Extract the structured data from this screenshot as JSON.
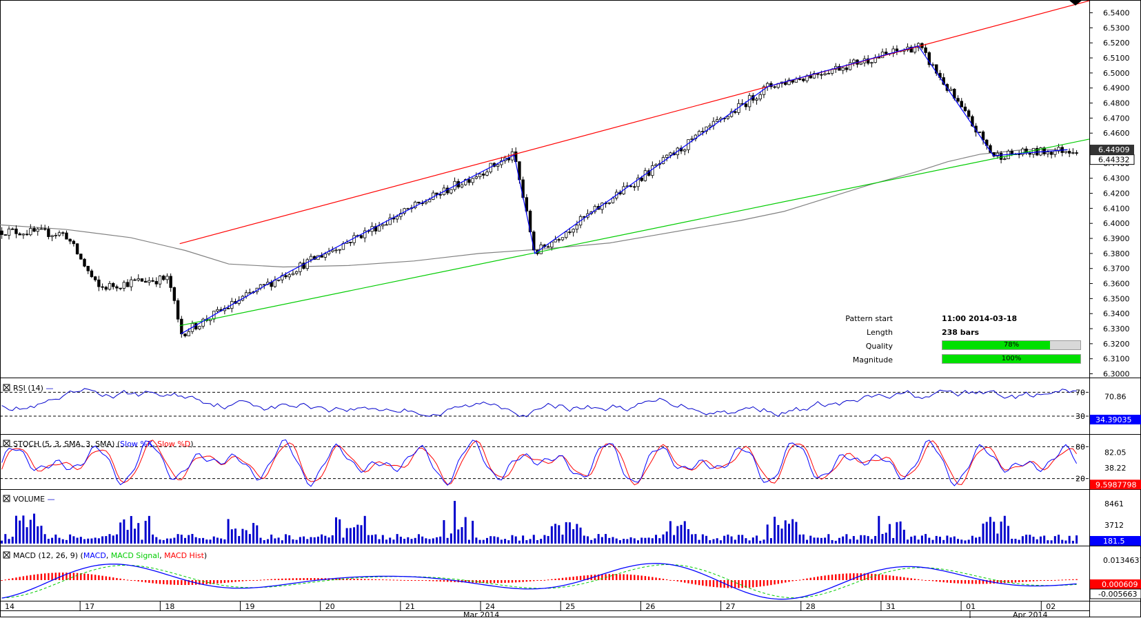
{
  "chart_data": {
    "type": "candlestick",
    "price_axis": {
      "ticks": [
        "6.5400",
        "6.5300",
        "6.5200",
        "6.5100",
        "6.5000",
        "6.4900",
        "6.4800",
        "6.4700",
        "6.4600",
        "6.4500",
        "6.4400",
        "6.4300",
        "6.4200",
        "6.4100",
        "6.4000",
        "6.3900",
        "6.3800",
        "6.3700",
        "6.3600",
        "6.3500",
        "6.3400",
        "6.3300",
        "6.3200",
        "6.3100",
        "6.3000"
      ],
      "ylim": [
        6.2975,
        6.5485
      ],
      "price_tag_1": "6.44909",
      "price_tag_2": "6.44332"
    },
    "x_axis": {
      "day_labels": [
        "14",
        "17",
        "18",
        "19",
        "20",
        "21",
        "24",
        "25",
        "26",
        "27",
        "28",
        "31",
        "01",
        "02"
      ],
      "month_labels": [
        "Mar 2014",
        "Apr 2014"
      ]
    },
    "overlays": {
      "resistance": {
        "color": "#ff0000",
        "from": [
          0.165,
          6.3865
        ],
        "to": [
          1.0,
          6.548
        ]
      },
      "support": {
        "color": "#00cc00",
        "from": [
          0.165,
          6.332
        ],
        "to": [
          1.0,
          6.456
        ]
      },
      "zigzag": {
        "color": "#0000ff",
        "points": [
          [
            0.166,
            6.3265
          ],
          [
            0.266,
            6.368
          ],
          [
            0.472,
            6.4455
          ],
          [
            0.491,
            6.38
          ],
          [
            0.705,
            6.491
          ],
          [
            0.843,
            6.518
          ],
          [
            0.912,
            6.445
          ],
          [
            0.98,
            6.449
          ]
        ]
      },
      "moving_average": {
        "color": "#808080",
        "points": [
          [
            0,
            6.399
          ],
          [
            0.06,
            6.396
          ],
          [
            0.12,
            6.3905
          ],
          [
            0.17,
            6.382
          ],
          [
            0.21,
            6.373
          ],
          [
            0.26,
            6.371
          ],
          [
            0.32,
            6.372
          ],
          [
            0.38,
            6.375
          ],
          [
            0.44,
            6.38
          ],
          [
            0.5,
            6.383
          ],
          [
            0.56,
            6.387
          ],
          [
            0.6,
            6.392
          ],
          [
            0.64,
            6.397
          ],
          [
            0.68,
            6.402
          ],
          [
            0.72,
            6.408
          ],
          [
            0.76,
            6.417
          ],
          [
            0.8,
            6.426
          ],
          [
            0.84,
            6.434
          ],
          [
            0.87,
            6.441
          ],
          [
            0.9,
            6.446
          ],
          [
            0.94,
            6.449
          ],
          [
            0.98,
            6.449
          ]
        ]
      }
    },
    "pattern_info": {
      "start_label": "Pattern start",
      "start_value": "11:00 2014-03-18",
      "length_label": "Length",
      "length_value": "238 bars",
      "quality_label": "Quality",
      "quality_value": "78%",
      "quality_fraction": 0.78,
      "magnitude_label": "Magnitude",
      "magnitude_value": "100%",
      "magnitude_fraction": 1.0
    },
    "rsi": {
      "title": "RSI (14)",
      "levels": [
        "70",
        "30"
      ],
      "axis_labels": [
        "70.86"
      ],
      "current_value": "34.39035",
      "color": "#0000cc"
    },
    "stoch": {
      "title": "STOCH (5, 3, SMA, 3, SMA)",
      "legend_k": "Slow %K",
      "legend_d": "Slow %D",
      "levels": [
        "80",
        "20"
      ],
      "axis_labels": [
        "82.05",
        "38.22"
      ],
      "current_value": "9.5987798",
      "k_color": "#0000ff",
      "d_color": "#ff0000"
    },
    "volume": {
      "title": "VOLUME",
      "axis_labels": [
        "8461",
        "3712"
      ],
      "current_value": "181.5",
      "color": "#0000cc"
    },
    "macd": {
      "title": "MACD (12, 26, 9)",
      "legend_macd": "MACD",
      "legend_signal": "MACD Signal",
      "legend_hist": "MACD Hist",
      "axis_labels": [
        "0.0134637"
      ],
      "value_1": "0.000609",
      "value_2": "-0.005663",
      "macd_color": "#0000ff",
      "signal_color": "#00cc00",
      "hist_color": "#ff0000"
    }
  }
}
